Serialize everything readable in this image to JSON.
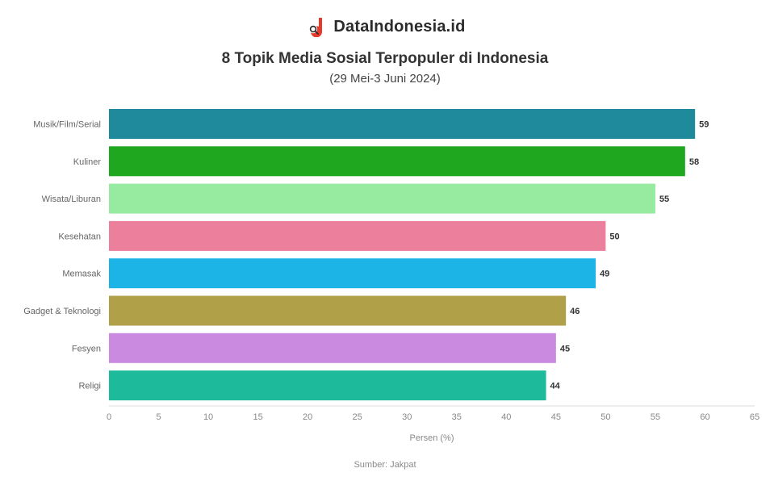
{
  "brand": {
    "name": "DataIndonesia.id",
    "logo_color": "#e8392d",
    "logo_icon": "magnifier-logo-icon"
  },
  "header": {
    "title": "8 Topik Media Sosial Terpopuler di Indonesia",
    "subtitle": "(29 Mei-3 Juni 2024)"
  },
  "footer": {
    "source": "Sumber: Jakpat"
  },
  "chart_data": {
    "type": "bar",
    "orientation": "horizontal",
    "categories": [
      "Musik/Film/Serial",
      "Kuliner",
      "Wisata/Liburan",
      "Kesehatan",
      "Memasak",
      "Gadget & Teknologi",
      "Fesyen",
      "Religi"
    ],
    "values": [
      59,
      58,
      55,
      50,
      49,
      46,
      45,
      44
    ],
    "colors": [
      "#1f8a9c",
      "#1fa81f",
      "#96eba1",
      "#ec7f9c",
      "#1cb4e6",
      "#b0a048",
      "#c98ae0",
      "#1dbb9b"
    ],
    "xlabel": "Persen (%)",
    "xlim": [
      0,
      65
    ],
    "xticks": [
      0,
      5,
      10,
      15,
      20,
      25,
      30,
      35,
      40,
      45,
      50,
      55,
      60,
      65
    ],
    "grid": false,
    "legend": "none"
  }
}
